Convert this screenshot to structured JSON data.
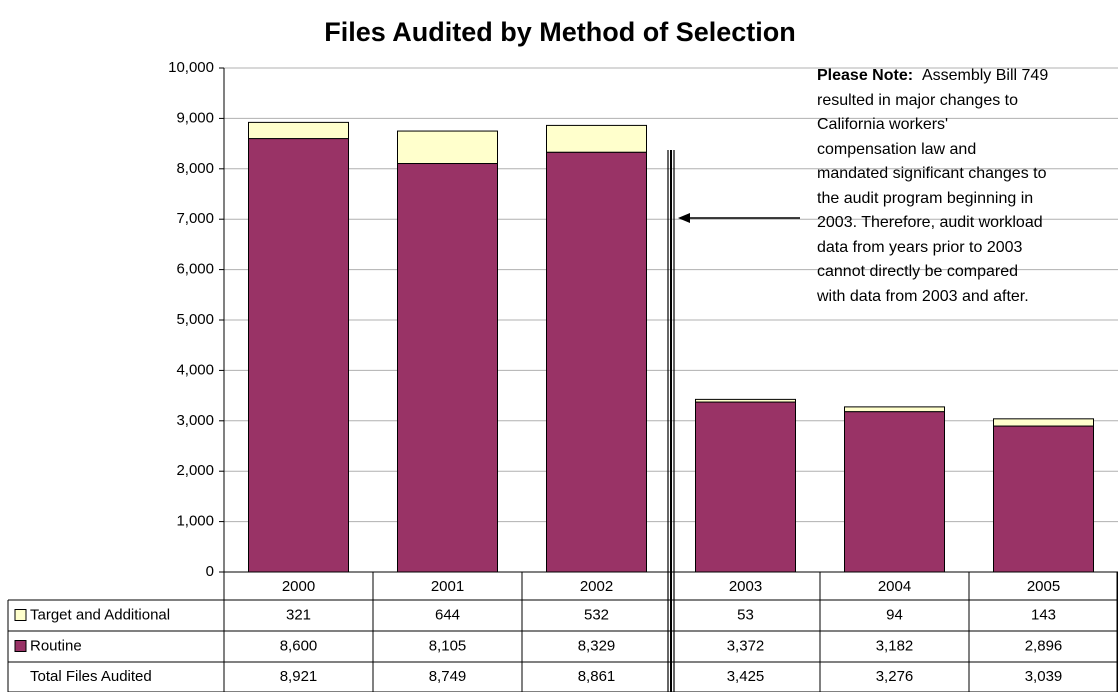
{
  "chart_data": {
    "type": "stacked_bar",
    "title": "Files Audited by Method of Selection",
    "categories": [
      "2000",
      "2001",
      "2002",
      "2003",
      "2004",
      "2005"
    ],
    "series": [
      {
        "name": "Routine",
        "color": "#993366",
        "values": [
          8600,
          8105,
          8329,
          3372,
          3182,
          2896
        ],
        "value_labels": [
          "8,600",
          "8,105",
          "8,329",
          "3,372",
          "3,182",
          "2,896"
        ]
      },
      {
        "name": "Target and Additional",
        "color": "#ffffcc",
        "values": [
          321,
          644,
          532,
          53,
          94,
          143
        ]
      }
    ],
    "totals_label": "Total Files Audited",
    "totals": [
      "8,921",
      "8,749",
      "8,861",
      "3,425",
      "3,276",
      "3,039"
    ],
    "ylim": [
      0,
      10000
    ],
    "yticks": [
      0,
      {
        "value": 1000,
        "label": "1,000"
      },
      {
        "value": 2000,
        "label": "2,000"
      },
      {
        "value": 3000,
        "label": "3,000"
      },
      {
        "value": 4000,
        "label": "4,000"
      },
      {
        "value": 5000,
        "label": "5,000"
      },
      {
        "value": 6000,
        "label": "6,000"
      },
      {
        "value": 7000,
        "label": "7,000"
      },
      {
        "value": 8000,
        "label": "8,000"
      },
      {
        "value": 9000,
        "label": "9,000"
      },
      {
        "value": 10000,
        "label": "10,000"
      }
    ],
    "grid": true,
    "note_title": "Please Note:",
    "note_lines": [
      "Assembly Bill 749",
      "resulted in major changes to",
      "California workers'",
      "compensation law and",
      "mandated significant changes to",
      "the audit program beginning in",
      "2003.  Therefore, audit workload",
      "data from years prior to 2003",
      "cannot directly be compared",
      "with data from 2003 and after."
    ]
  }
}
